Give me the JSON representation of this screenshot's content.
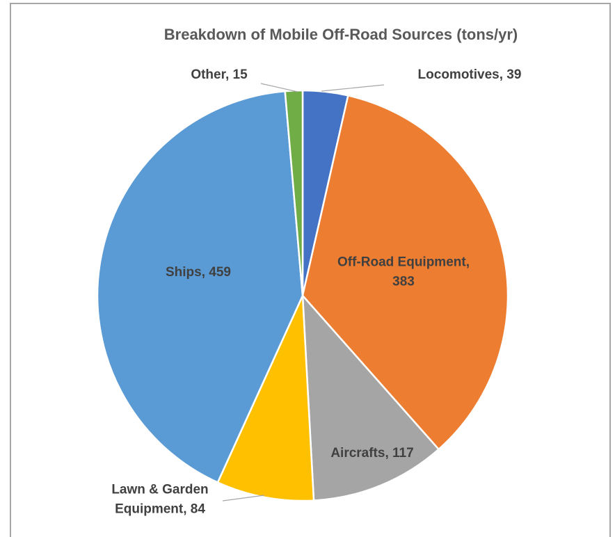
{
  "chart_data": {
    "type": "pie",
    "title": "Breakdown of Mobile Off-Road Sources (tons/yr)",
    "categories": [
      "Locomotives",
      "Off-Road Equipment",
      "Aircrafts",
      "Lawn & Garden Equipment",
      "Ships",
      "Other"
    ],
    "values": [
      39,
      383,
      117,
      84,
      459,
      15
    ],
    "value_labels": [
      "Locomotives, 39",
      "Off-Road Equipment, 383",
      "Aircrafts, 117",
      "Lawn & Garden Equipment, 84",
      "Ships, 459",
      "Other, 15"
    ],
    "colors": [
      "#4472c4",
      "#ed7d31",
      "#a5a5a5",
      "#ffc000",
      "#5b9bd5",
      "#70ad47"
    ]
  }
}
